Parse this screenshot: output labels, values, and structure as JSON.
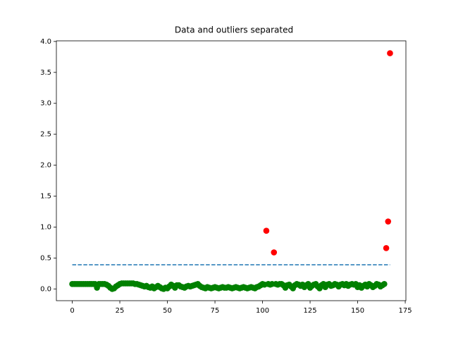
{
  "chart_data": {
    "type": "scatter",
    "title": "Data and outliers separated",
    "xlim": [
      -8.35,
      175.35
    ],
    "ylim": [
      -0.19,
      4.01
    ],
    "xticks": [
      0,
      25,
      50,
      75,
      100,
      125,
      150,
      175
    ],
    "yticks": [
      {
        "value": 0,
        "label": "0.0"
      },
      0.5,
      {
        "value": 1,
        "label": "1.0"
      },
      1.5,
      {
        "value": 2,
        "label": "2.0"
      },
      2.5,
      {
        "value": 3,
        "label": "3.0"
      },
      3.5,
      {
        "value": 4,
        "label": "4.0"
      }
    ],
    "series": [
      {
        "kind": "points",
        "color": "#008000",
        "x": [
          0,
          1,
          2,
          3,
          4,
          5,
          6,
          7,
          8,
          9,
          10,
          11,
          12,
          13,
          14,
          15,
          16,
          17,
          18,
          19,
          20,
          21,
          22,
          23,
          24,
          25,
          26,
          27,
          28,
          29,
          30,
          31,
          32,
          33,
          34,
          35,
          36,
          37,
          38,
          39,
          40,
          41,
          42,
          43,
          44,
          45,
          46,
          47,
          48,
          49,
          50,
          51,
          52,
          53,
          54,
          55,
          56,
          57,
          58,
          59,
          60,
          61,
          62,
          63,
          64,
          65,
          66,
          67,
          68,
          69,
          70,
          71,
          72,
          73,
          74,
          75,
          76,
          77,
          78,
          79,
          80,
          81,
          82,
          83,
          84,
          85,
          86,
          87,
          88,
          89,
          90,
          91,
          92,
          93,
          94,
          95,
          96,
          97,
          98,
          99,
          100,
          101,
          103,
          104,
          105,
          107,
          108,
          109,
          110,
          111,
          112,
          113,
          114,
          115,
          116,
          117,
          118,
          119,
          120,
          121,
          122,
          123,
          124,
          125,
          126,
          127,
          128,
          129,
          130,
          131,
          132,
          133,
          134,
          135,
          136,
          137,
          138,
          139,
          140,
          141,
          142,
          143,
          144,
          145,
          146,
          147,
          148,
          149,
          150,
          151,
          152,
          153,
          154,
          155,
          156,
          157,
          158,
          159,
          160,
          161,
          162,
          163,
          164
        ],
        "values": [
          0.08,
          0.08,
          0.08,
          0.08,
          0.08,
          0.08,
          0.08,
          0.08,
          0.08,
          0.08,
          0.08,
          0.08,
          0.08,
          0.02,
          0.08,
          0.08,
          0.08,
          0.08,
          0.07,
          0.05,
          0.02,
          0.0,
          0.01,
          0.04,
          0.06,
          0.08,
          0.09,
          0.09,
          0.09,
          0.09,
          0.09,
          0.09,
          0.09,
          0.08,
          0.08,
          0.07,
          0.06,
          0.05,
          0.04,
          0.05,
          0.03,
          0.02,
          0.04,
          0.01,
          0.03,
          0.05,
          0.03,
          0.01,
          0.0,
          0.02,
          0.01,
          0.04,
          0.07,
          0.05,
          0.02,
          0.06,
          0.06,
          0.04,
          0.03,
          0.02,
          0.04,
          0.05,
          0.04,
          0.05,
          0.06,
          0.07,
          0.08,
          0.05,
          0.03,
          0.02,
          0.01,
          0.03,
          0.02,
          0.01,
          0.02,
          0.03,
          0.02,
          0.01,
          0.02,
          0.03,
          0.02,
          0.02,
          0.03,
          0.02,
          0.01,
          0.02,
          0.03,
          0.02,
          0.01,
          0.02,
          0.03,
          0.02,
          0.01,
          0.02,
          0.03,
          0.02,
          0.01,
          0.03,
          0.04,
          0.06,
          0.08,
          0.07,
          0.08,
          0.07,
          0.08,
          0.08,
          0.07,
          0.08,
          0.08,
          0.06,
          0.02,
          0.06,
          0.07,
          0.04,
          0.01,
          0.06,
          0.08,
          0.07,
          0.05,
          0.07,
          0.03,
          0.06,
          0.08,
          0.02,
          0.05,
          0.07,
          0.08,
          0.04,
          0.01,
          0.06,
          0.08,
          0.03,
          0.07,
          0.08,
          0.05,
          0.06,
          0.08,
          0.07,
          0.04,
          0.07,
          0.08,
          0.06,
          0.08,
          0.05,
          0.07,
          0.08,
          0.07,
          0.08,
          0.03,
          0.06,
          0.02,
          0.05,
          0.07,
          0.04,
          0.08,
          0.06,
          0.03,
          0.05,
          0.08,
          0.07,
          0.04,
          0.06,
          0.08
        ]
      },
      {
        "kind": "points",
        "color": "#ff0000",
        "x": [
          102,
          106,
          165,
          166,
          167
        ],
        "values": [
          0.94,
          0.59,
          0.66,
          1.09,
          3.81
        ]
      },
      {
        "kind": "dashed-line",
        "color": "#1f77b4",
        "x": [
          0,
          167
        ],
        "values": [
          0.39,
          0.39
        ]
      }
    ]
  }
}
